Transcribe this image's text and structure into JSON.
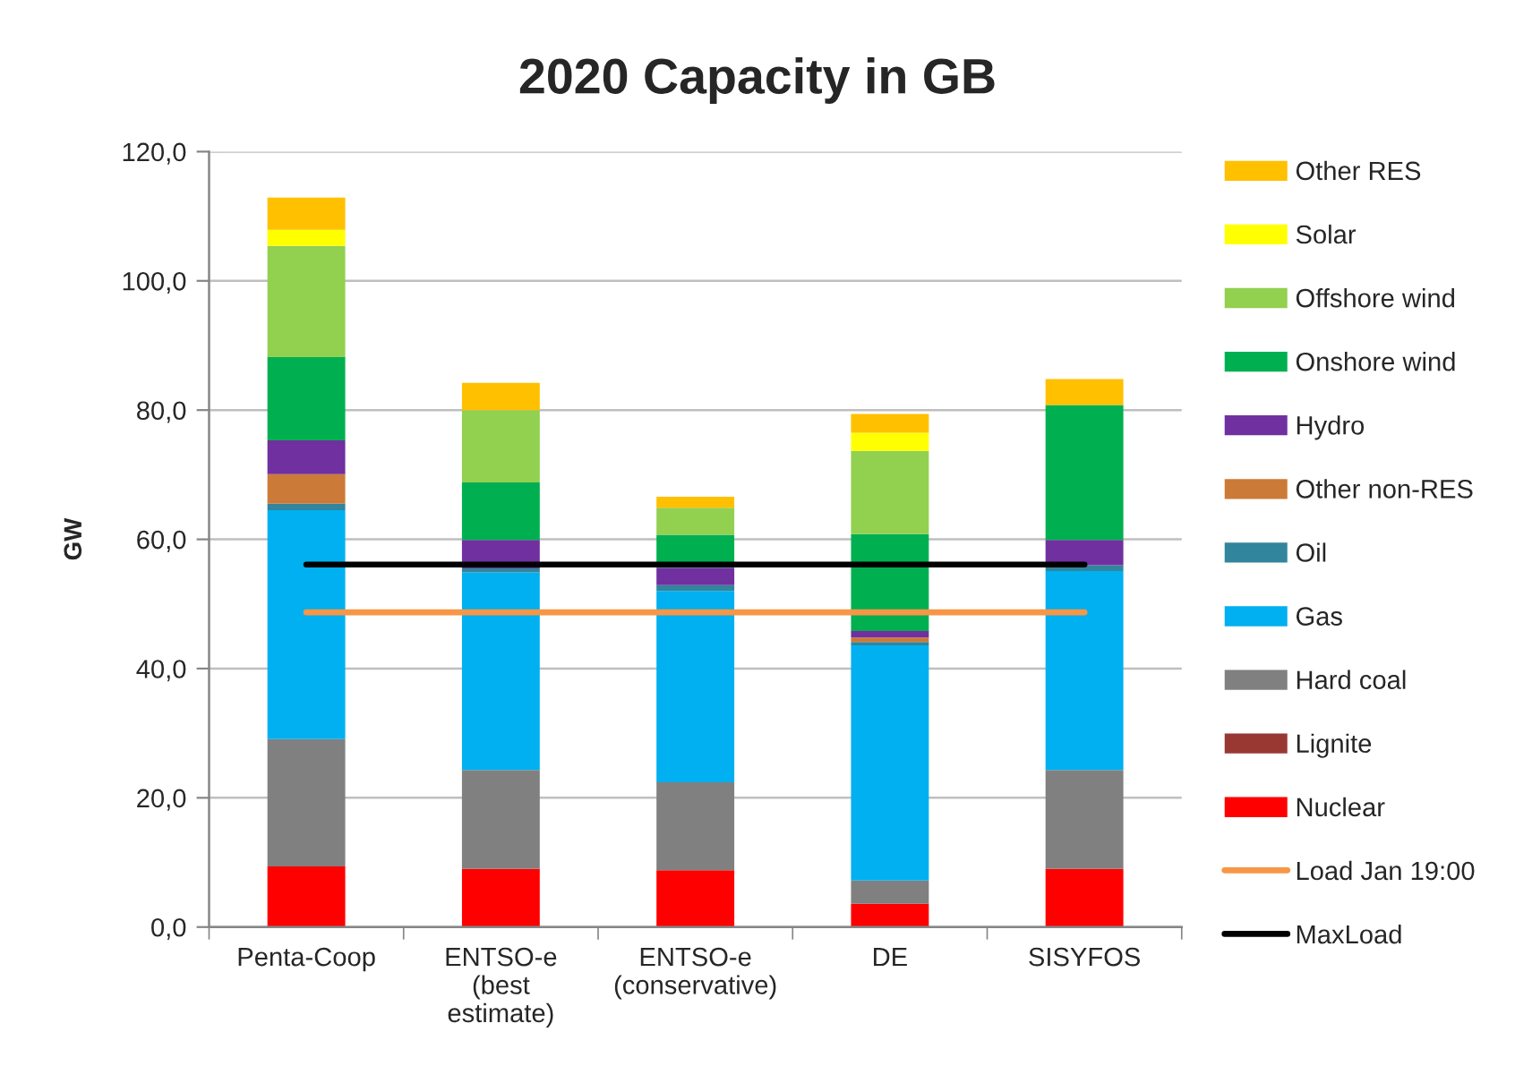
{
  "chart_data": {
    "type": "bar",
    "title": "2020 Capacity in GB",
    "ylabel": "GW",
    "categories": [
      "Penta-Coop",
      "ENTSO-e\n(best\nestimate)",
      "ENTSO-e\n(conservative)",
      "DE",
      "SISYFOS"
    ],
    "stacked": true,
    "ylim": [
      0,
      120
    ],
    "yticks": [
      {
        "value": 0,
        "label": "0,0"
      },
      {
        "value": 20,
        "label": "20,0"
      },
      {
        "value": 40,
        "label": "40,0"
      },
      {
        "value": 60,
        "label": "60,0"
      },
      {
        "value": 80,
        "label": "80,0"
      },
      {
        "value": 100,
        "label": "100,0"
      },
      {
        "value": 120,
        "label": "120,0"
      }
    ],
    "grid": "y",
    "legend": "right",
    "series": [
      {
        "name": "Nuclear",
        "color": "#ff0000",
        "values": [
          9.4,
          9.0,
          8.8,
          3.6,
          9.0
        ]
      },
      {
        "name": "Lignite",
        "color": "#993833",
        "values": [
          null,
          null,
          null,
          null,
          null
        ]
      },
      {
        "name": "Hard coal",
        "color": "#808080",
        "values": [
          19.7,
          15.3,
          13.6,
          3.6,
          15.3
        ]
      },
      {
        "name": "Gas",
        "color": "#00b0f0",
        "values": [
          35.4,
          30.6,
          29.6,
          36.4,
          30.8
        ]
      },
      {
        "name": "Oil",
        "color": "#31859c",
        "values": [
          1.0,
          0.6,
          0.9,
          0.5,
          0.9
        ]
      },
      {
        "name": "Other non-RES",
        "color": "#cc7a38",
        "values": [
          4.6,
          null,
          null,
          0.7,
          null
        ]
      },
      {
        "name": "Hydro",
        "color": "#7030a0",
        "values": [
          5.2,
          4.4,
          2.7,
          1.0,
          3.9
        ]
      },
      {
        "name": "Onshore wind",
        "color": "#00b050",
        "values": [
          12.9,
          8.9,
          5.1,
          15.0,
          20.9
        ]
      },
      {
        "name": "Offshore wind",
        "color": "#92d050",
        "values": [
          17.2,
          11.2,
          4.2,
          12.9,
          null
        ]
      },
      {
        "name": "Solar",
        "color": "#ffff00",
        "values": [
          2.5,
          null,
          null,
          2.8,
          null
        ]
      },
      {
        "name": "Other RES",
        "color": "#ffc000",
        "values": [
          5.0,
          4.2,
          1.7,
          2.9,
          4.0
        ]
      },
      {
        "name": "Load Jan 19:00",
        "type": "line",
        "color": "#f79646",
        "values": [
          48.7,
          48.7,
          48.7,
          48.7,
          48.7
        ]
      },
      {
        "name": "MaxLoad",
        "type": "line",
        "color": "#000000",
        "values": [
          56.1,
          56.1,
          56.1,
          56.1,
          56.1
        ]
      }
    ]
  }
}
